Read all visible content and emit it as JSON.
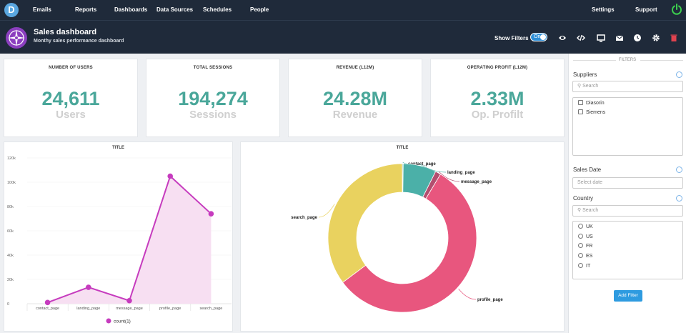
{
  "nav": {
    "logo_letter": "D",
    "items": [
      "Emails",
      "Reports",
      "Dashboards",
      "Data Sources",
      "Schedules",
      "People"
    ],
    "settings": "Settings",
    "support": "Support"
  },
  "header": {
    "title": "Sales dashboard",
    "subtitle": "Monthy sales performance dashboard",
    "show_filters_label": "Show Filters",
    "toggle_label": "On"
  },
  "kpis": [
    {
      "title": "NUMBER OF USERS",
      "value": "24,611",
      "unit": "Users"
    },
    {
      "title": "TOTAL SESSIONS",
      "value": "194,274",
      "unit": "Sessions"
    },
    {
      "title": "REVENUE (L12M)",
      "value": "24.28M",
      "unit": "Revenue"
    },
    {
      "title": "OPERATING PROFIT (L12M)",
      "value": "2.33M",
      "unit": "Op. Profilt"
    }
  ],
  "colors": {
    "accent": "#4aa79a",
    "nav_bg": "#1f2a3a",
    "line": "#c63bbe",
    "area": "#f7dff2",
    "pie": [
      "#4bb0a8",
      "#e9d25f",
      "#e8567e",
      "#b34e6f"
    ]
  },
  "chart_data": [
    {
      "type": "area",
      "title": "TITLE",
      "categories": [
        "contact_page",
        "landing_page",
        "message_page",
        "profile_page",
        "search_page"
      ],
      "series": [
        {
          "name": "count(1)",
          "values": [
            1000,
            13500,
            2500,
            105000,
            74000
          ]
        }
      ],
      "y_ticks": [
        "0",
        "20k",
        "40k",
        "60k",
        "80k",
        "100k",
        "120k"
      ],
      "ylim": [
        0,
        120000
      ],
      "legend": "bottom"
    },
    {
      "type": "pie",
      "title": "TITLE",
      "labels": [
        "contact_page",
        "landing_page",
        "message_page",
        "profile_page",
        "search_page"
      ],
      "values": [
        0.2,
        7.2,
        1.2,
        56.2,
        35.2
      ],
      "colors": [
        "#4bb0a8",
        "#4bb0a8",
        "#b34e6f",
        "#e8567e",
        "#e9d25f"
      ]
    }
  ],
  "filters": {
    "heading": "FILTERS",
    "suppliers": {
      "label": "Suppliers",
      "placeholder": "Search",
      "options": [
        "Diasorin",
        "Siemens"
      ]
    },
    "sales_date": {
      "label": "Sales Date",
      "placeholder": "Select date"
    },
    "country": {
      "label": "Country",
      "placeholder": "Search",
      "options": [
        "UK",
        "US",
        "FR",
        "ES",
        "IT"
      ]
    },
    "add_button": "Add Filter"
  }
}
